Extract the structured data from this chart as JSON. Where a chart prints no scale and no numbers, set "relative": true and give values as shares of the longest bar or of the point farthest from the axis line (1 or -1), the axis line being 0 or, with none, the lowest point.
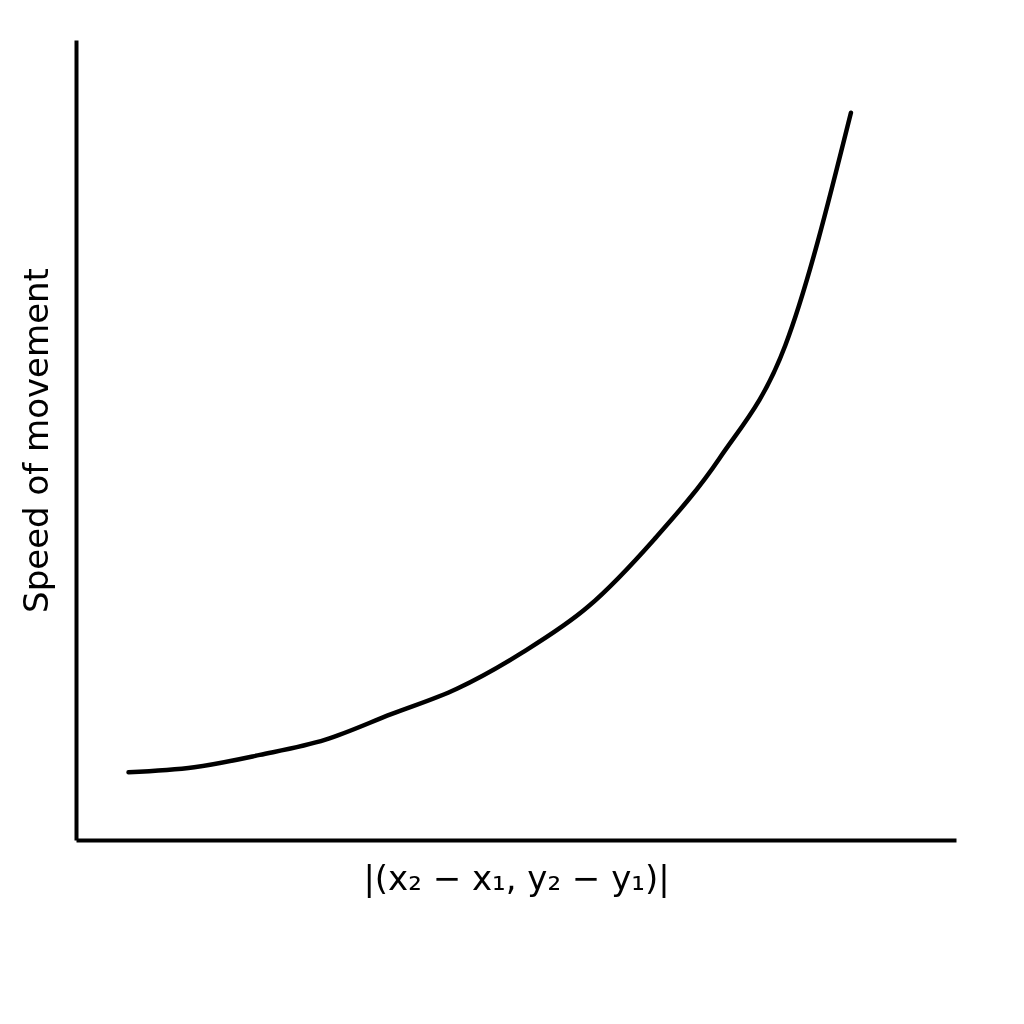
{
  "chart_data": {
    "type": "line",
    "relative": true,
    "xlabel": "|(x₂ − x₁, y₂ − y₁)|",
    "ylabel": "Speed of movement",
    "categories": [
      null,
      null,
      null,
      null,
      null,
      null,
      null,
      null,
      null,
      null,
      null,
      null
    ],
    "series": [
      {
        "color": "#000000",
        "values": [
          0.093,
          0.1,
          0.117,
          0.138,
          0.173,
          0.208,
          0.258,
          0.321,
          0.413,
          0.525,
          0.68,
          1.0
        ]
      }
    ],
    "grid": false,
    "marker": "none",
    "line_style": "solid"
  }
}
